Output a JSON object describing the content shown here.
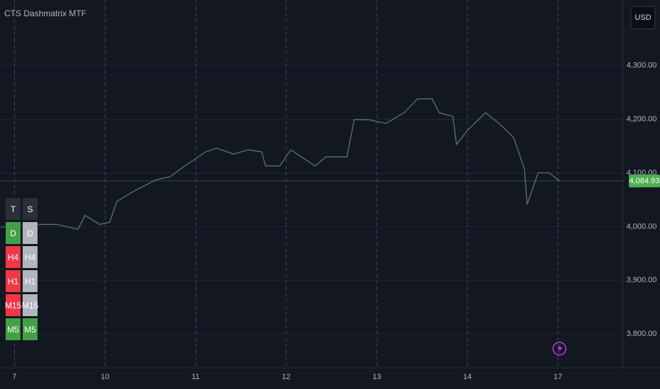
{
  "chart_data": {
    "type": "line",
    "title": "CTS Dashmatrix MTF",
    "currency": "USD",
    "x": [
      -0.15,
      0.16,
      0.47,
      0.7,
      0.78,
      0.94,
      1.05,
      1.13,
      1.33,
      1.56,
      1.72,
      1.88,
      2.11,
      2.23,
      2.42,
      2.58,
      2.73,
      2.77,
      2.93,
      3.05,
      3.2,
      3.32,
      3.44,
      3.67,
      3.75,
      3.91,
      4.1,
      4.3,
      4.45,
      4.61,
      4.69,
      4.84,
      4.88,
      5.0,
      5.2,
      5.35,
      5.51,
      5.63,
      5.66,
      5.78,
      5.9,
      6.02
    ],
    "values": [
      3999,
      4004,
      4004,
      3995,
      4021,
      4004,
      4008,
      4047,
      4067,
      4087,
      4093,
      4113,
      4139,
      4146,
      4135,
      4143,
      4139,
      4113,
      4113,
      4143,
      4126,
      4113,
      4130,
      4130,
      4199,
      4199,
      4192,
      4212,
      4238,
      4238,
      4212,
      4205,
      4153,
      4179,
      4212,
      4192,
      4166,
      4107,
      4041,
      4100,
      4100,
      4084.93
    ],
    "color": "#4f7d5a",
    "last_price": {
      "value": 4084.93,
      "label": "4,084.93"
    },
    "xlim": [
      -0.16,
      6.72
    ],
    "ylim": [
      3737,
      4422
    ],
    "xticks": [
      {
        "value": 0,
        "label": "7"
      },
      {
        "value": 1,
        "label": "10"
      },
      {
        "value": 2,
        "label": "11"
      },
      {
        "value": 3,
        "label": "12"
      },
      {
        "value": 4,
        "label": "13"
      },
      {
        "value": 5,
        "label": "14"
      },
      {
        "value": 6,
        "label": "17"
      }
    ],
    "yticks": [
      {
        "value": 3800,
        "label": "3,800.00"
      },
      {
        "value": 3900,
        "label": "3,900.00"
      },
      {
        "value": 4000,
        "label": "4,000.00"
      },
      {
        "value": 4100,
        "label": "4,100.00"
      },
      {
        "value": 4200,
        "label": "4,200.00"
      },
      {
        "value": 4300,
        "label": "4,300.00"
      }
    ],
    "grid": true
  },
  "indicator_table": {
    "header": [
      "T",
      "S"
    ],
    "rows": [
      [
        {
          "text": "D",
          "color": "#43a047"
        },
        {
          "text": "D",
          "color": "#b2b5be"
        }
      ],
      [
        {
          "text": "H4",
          "color": "#f23645"
        },
        {
          "text": "H4",
          "color": "#b2b5be"
        }
      ],
      [
        {
          "text": "H1",
          "color": "#f23645"
        },
        {
          "text": "H1",
          "color": "#b2b5be"
        }
      ],
      [
        {
          "text": "M15",
          "color": "#f23645"
        },
        {
          "text": "M15",
          "color": "#b2b5be"
        }
      ],
      [
        {
          "text": "M5",
          "color": "#43a047"
        },
        {
          "text": "M5",
          "color": "#43a047"
        }
      ]
    ]
  }
}
